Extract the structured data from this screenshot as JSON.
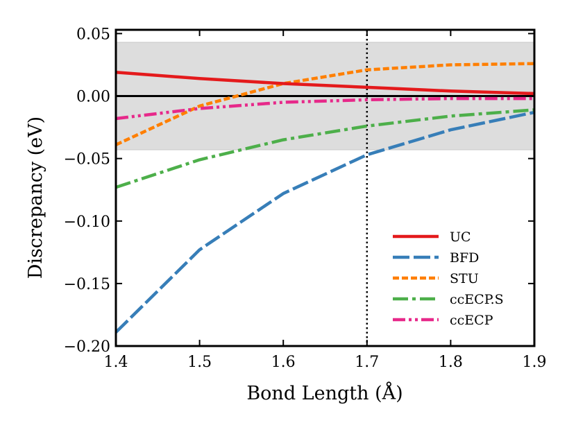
{
  "chart_data": {
    "type": "line",
    "title": "",
    "xlabel": "Bond Length (Å)",
    "ylabel": "Discrepancy (eV)",
    "xlim": [
      1.4,
      1.9
    ],
    "ylim": [
      -0.2,
      0.053
    ],
    "xticks": [
      1.4,
      1.5,
      1.6,
      1.7,
      1.8,
      1.9
    ],
    "xtick_labels": [
      "1.4",
      "1.5",
      "1.6",
      "1.7",
      "1.8",
      "1.9"
    ],
    "yticks": [
      0.05,
      0.0,
      -0.05,
      -0.1,
      -0.15,
      -0.2
    ],
    "ytick_labels": [
      "0.05",
      "0.00",
      "−0.05",
      "−0.10",
      "−0.15",
      "−0.20"
    ],
    "shaded_band": [
      -0.043,
      0.043
    ],
    "band_color": "#dddddd",
    "zero_line": 0.0,
    "vertical_marker": 1.7,
    "legend_position": "lower-right",
    "x": [
      1.4,
      1.5,
      1.6,
      1.7,
      1.8,
      1.9
    ],
    "series": [
      {
        "name": "UC",
        "color": "#e41a1c",
        "dash": "solid",
        "values": [
          0.019,
          0.014,
          0.01,
          0.007,
          0.004,
          0.002
        ]
      },
      {
        "name": "BFD",
        "color": "#377eb8",
        "dash": "long-dash",
        "values": [
          -0.189,
          -0.123,
          -0.078,
          -0.047,
          -0.027,
          -0.013
        ]
      },
      {
        "name": "STU",
        "color": "#ff7f00",
        "dash": "short-dash",
        "values": [
          -0.039,
          -0.008,
          0.01,
          0.021,
          0.025,
          0.026
        ]
      },
      {
        "name": "ccECP.S",
        "color": "#4daf4a",
        "dash": "dash-dot",
        "values": [
          -0.073,
          -0.051,
          -0.035,
          -0.024,
          -0.016,
          -0.011
        ]
      },
      {
        "name": "ccECP",
        "color": "#e7298a",
        "dash": "dash-dot-dot",
        "values": [
          -0.018,
          -0.01,
          -0.005,
          -0.003,
          -0.002,
          -0.002
        ]
      }
    ]
  }
}
